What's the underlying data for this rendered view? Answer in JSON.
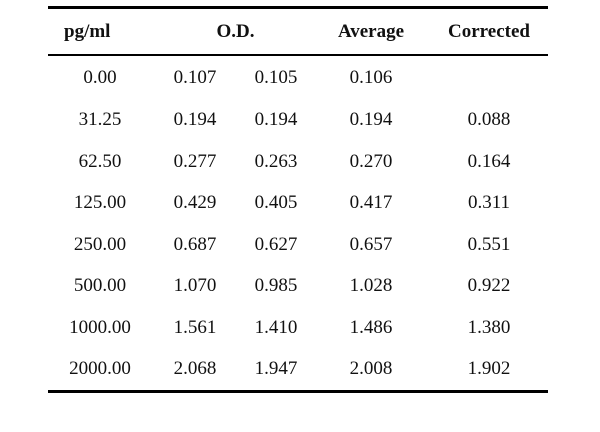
{
  "table": {
    "headers": {
      "pg_ml": "pg/ml",
      "od": "O.D.",
      "average": "Average",
      "corrected": "Corrected"
    },
    "rows": [
      {
        "pg_ml": "0.00",
        "od1": "0.107",
        "od2": "0.105",
        "average": "0.106",
        "corrected": ""
      },
      {
        "pg_ml": "31.25",
        "od1": "0.194",
        "od2": "0.194",
        "average": "0.194",
        "corrected": "0.088"
      },
      {
        "pg_ml": "62.50",
        "od1": "0.277",
        "od2": "0.263",
        "average": "0.270",
        "corrected": "0.164"
      },
      {
        "pg_ml": "125.00",
        "od1": "0.429",
        "od2": "0.405",
        "average": "0.417",
        "corrected": "0.311"
      },
      {
        "pg_ml": "250.00",
        "od1": "0.687",
        "od2": "0.627",
        "average": "0.657",
        "corrected": "0.551"
      },
      {
        "pg_ml": "500.00",
        "od1": "1.070",
        "od2": "0.985",
        "average": "1.028",
        "corrected": "0.922"
      },
      {
        "pg_ml": "1000.00",
        "od1": "1.561",
        "od2": "1.410",
        "average": "1.486",
        "corrected": "1.380"
      },
      {
        "pg_ml": "2000.00",
        "od1": "2.068",
        "od2": "1.947",
        "average": "2.008",
        "corrected": "1.902"
      }
    ]
  }
}
